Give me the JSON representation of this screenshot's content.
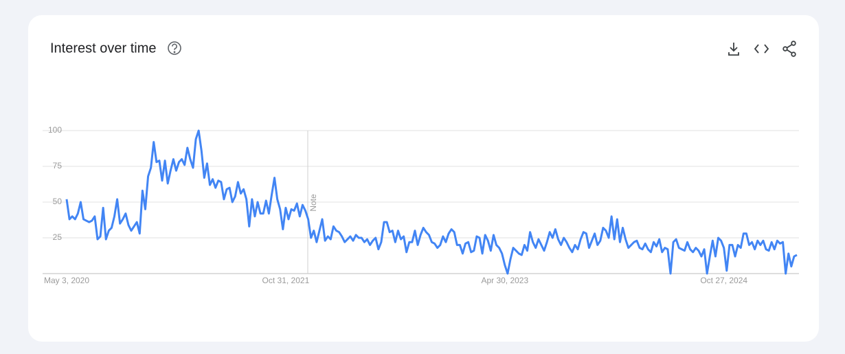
{
  "chart_data": {
    "type": "line",
    "title": "Interest over time",
    "annotation": "Note",
    "categories": [
      "May 3, 2020",
      null,
      null,
      null,
      null,
      null,
      null,
      null,
      null,
      null,
      null,
      null,
      null,
      null,
      null,
      null,
      null,
      null,
      null,
      null,
      null,
      null,
      null,
      null,
      null,
      null,
      null,
      null,
      null,
      null,
      null,
      null,
      null,
      null,
      null,
      null,
      null,
      null,
      null,
      null,
      null,
      null,
      null,
      null,
      null,
      null,
      null,
      null,
      null,
      null,
      null,
      null,
      null,
      null,
      null,
      null,
      null,
      null,
      null,
      null,
      null,
      null,
      null,
      null,
      null,
      null,
      null,
      null,
      null,
      null,
      null,
      null,
      null,
      null,
      null,
      null,
      null,
      null,
      "Oct 31, 2021",
      null,
      null,
      null,
      null,
      null,
      null,
      null,
      null,
      null,
      null,
      null,
      null,
      null,
      null,
      null,
      null,
      null,
      null,
      null,
      null,
      null,
      null,
      null,
      null,
      null,
      null,
      null,
      null,
      null,
      null,
      null,
      null,
      null,
      null,
      null,
      null,
      null,
      null,
      null,
      null,
      null,
      null,
      null,
      null,
      null,
      null,
      null,
      null,
      null,
      null,
      null,
      null,
      null,
      null,
      null,
      null,
      null,
      null,
      null,
      null,
      null,
      null,
      null,
      null,
      null,
      null,
      null,
      null,
      null,
      null,
      null,
      null,
      null,
      null,
      null,
      null,
      null,
      "Apr 30, 2023",
      null,
      null,
      null,
      null,
      null,
      null,
      null,
      null,
      null,
      null,
      null,
      null,
      null,
      null,
      null,
      null,
      null,
      null,
      null,
      null,
      null,
      null,
      null,
      null,
      null,
      null,
      null,
      null,
      null,
      null,
      null,
      null,
      null,
      null,
      null,
      null,
      null,
      null,
      null,
      null,
      null,
      null,
      null,
      null,
      null,
      null,
      null,
      null,
      null,
      null,
      null,
      null,
      null,
      null,
      null,
      null,
      null,
      null,
      null,
      null,
      null,
      null,
      null,
      null,
      null,
      null,
      null,
      null,
      null,
      null,
      null,
      null,
      null,
      null,
      null,
      null,
      null,
      "Oct 27, 2024",
      null,
      null,
      null,
      null,
      null,
      null,
      null,
      null,
      null,
      null,
      null,
      null,
      null,
      null,
      null,
      null,
      null,
      null,
      null,
      null,
      null,
      null,
      null,
      null,
      null,
      null
    ],
    "series": [
      {
        "name": "Interest",
        "color": "#4285f4",
        "values": [
          52,
          38,
          40,
          38,
          42,
          50,
          38,
          37,
          36,
          37,
          40,
          24,
          26,
          46,
          24,
          30,
          32,
          40,
          52,
          35,
          38,
          42,
          34,
          30,
          33,
          36,
          28,
          58,
          45,
          68,
          74,
          92,
          78,
          79,
          65,
          79,
          63,
          72,
          80,
          72,
          78,
          80,
          76,
          88,
          80,
          74,
          94,
          100,
          86,
          67,
          77,
          62,
          66,
          60,
          65,
          64,
          52,
          59,
          60,
          50,
          54,
          64,
          56,
          59,
          52,
          33,
          52,
          40,
          50,
          42,
          42,
          51,
          42,
          55,
          67,
          52,
          45,
          31,
          46,
          38,
          45,
          44,
          49,
          40,
          48,
          44,
          38,
          25,
          30,
          22,
          30,
          38,
          23,
          26,
          24,
          33,
          30,
          29,
          26,
          22,
          24,
          26,
          23,
          27,
          25,
          25,
          22,
          24,
          20,
          23,
          25,
          17,
          22,
          36,
          36,
          29,
          30,
          22,
          30,
          24,
          26,
          15,
          22,
          22,
          30,
          20,
          27,
          32,
          29,
          27,
          22,
          21,
          18,
          20,
          26,
          22,
          28,
          31,
          29,
          20,
          20,
          14,
          21,
          22,
          15,
          16,
          26,
          25,
          14,
          27,
          23,
          16,
          27,
          20,
          18,
          14,
          6,
          0,
          10,
          18,
          16,
          14,
          13,
          20,
          16,
          29,
          22,
          18,
          24,
          20,
          16,
          22,
          29,
          25,
          31,
          24,
          20,
          25,
          22,
          18,
          15,
          20,
          17,
          24,
          29,
          28,
          18,
          23,
          28,
          20,
          23,
          32,
          30,
          25,
          40,
          24,
          38,
          22,
          32,
          24,
          18,
          20,
          22,
          23,
          18,
          17,
          21,
          17,
          15,
          22,
          19,
          24,
          15,
          18,
          17,
          0,
          22,
          24,
          18,
          17,
          16,
          22,
          17,
          15,
          18,
          16,
          12,
          17,
          0,
          12,
          23,
          12,
          25,
          23,
          18,
          2,
          20,
          20,
          12,
          20,
          18,
          28,
          28,
          20,
          22,
          17,
          23,
          20,
          23,
          17,
          16,
          22,
          17,
          23,
          21,
          22,
          0,
          14,
          5,
          12,
          13
        ]
      }
    ],
    "ylim": [
      0,
      100
    ],
    "yticks": [
      25,
      50,
      75,
      100
    ],
    "grid": true
  }
}
